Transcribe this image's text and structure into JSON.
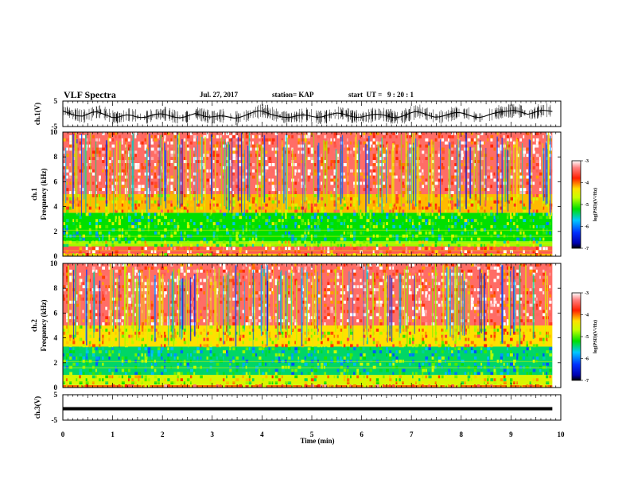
{
  "header": {
    "title": "VLF Spectra",
    "date": "Jul. 27, 2017",
    "station": "station= KAP",
    "start": "start  UT =   9 : 20 : 1"
  },
  "chart_data": [
    {
      "type": "line",
      "id": "ch1",
      "ylabel": "ch.1(V)",
      "ylim": [
        -5,
        5
      ],
      "yticks": [
        "5",
        "-5"
      ],
      "xlim": [
        0,
        10
      ],
      "series": [
        {
          "values": [
            1.1,
            0.4,
            -0.3,
            -0.8,
            -0.9,
            -0.2,
            0.6,
            0.8,
            0.1,
            -0.6,
            -1.4,
            -1.5,
            -0.9,
            -0.4,
            -0.6,
            -1.2,
            -1.5,
            -1.3,
            -0.7,
            -0.2,
            0.0,
            -0.3,
            -0.9,
            -1.4,
            -1.6,
            -1.2,
            -0.5,
            0.1,
            -0.4,
            -1.0,
            -1.3,
            -1.1,
            -0.8,
            -0.9,
            -1.3,
            -1.7,
            -1.5,
            -0.8,
            -0.1,
            0.7,
            1.2,
            0.9,
            0.1,
            -0.5,
            -0.9,
            -1.3,
            -1.5,
            -1.2,
            -0.7,
            -0.4,
            -0.6,
            -1.1,
            -1.4,
            -1.2,
            -0.6,
            -0.1,
            0.3,
            0.1,
            -0.5,
            -1.1,
            -1.4,
            -1.3,
            -0.8,
            -0.4,
            -0.2,
            -0.3,
            -0.7,
            -1.3,
            -1.6,
            -1.2,
            -0.5,
            0.3,
            0.9,
            0.6,
            -0.1,
            -0.8,
            -1.3,
            -1.2,
            -0.7,
            -0.1,
            0.4,
            0.5,
            0.1,
            -0.6,
            -1.2,
            -1.5,
            -1.1,
            -0.4,
            0.2,
            0.6,
            0.8,
            1.1,
            1.4,
            1.0,
            0.4,
            -0.2,
            0.3,
            1.0,
            1.4,
            1.2,
            0.9
          ]
        }
      ]
    },
    {
      "type": "heatmap",
      "id": "ch1spec",
      "ylabel": "ch.1\nFrequency  (kHz)",
      "ylim": [
        0,
        10
      ],
      "yticks": [
        "0",
        "2",
        "4",
        "6",
        "8",
        "10"
      ],
      "xlim": [
        0,
        10
      ],
      "colorbar": {
        "label": "log(PSD)(V²/Hz)",
        "ticks": [
          "-3",
          "-4",
          "-5",
          "-6",
          "-7"
        ],
        "range": [
          -7,
          -3
        ]
      },
      "bands_khz": [
        {
          "from": 0,
          "to": 0.2,
          "level": -4.2
        },
        {
          "from": 0.2,
          "to": 0.8,
          "level": -3.5
        },
        {
          "from": 0.8,
          "to": 1.2,
          "level": -4.8
        },
        {
          "from": 1.2,
          "to": 3.5,
          "level": -5.2
        },
        {
          "from": 3.5,
          "to": 5.0,
          "level": -4.2
        },
        {
          "from": 5.0,
          "to": 10,
          "level": -3.4
        }
      ]
    },
    {
      "type": "heatmap",
      "id": "ch2spec",
      "ylabel": "ch.2\nFrequency  (kHz)",
      "ylim": [
        0,
        10
      ],
      "yticks": [
        "0",
        "2",
        "4",
        "6",
        "8",
        "10"
      ],
      "xlim": [
        0,
        10
      ],
      "colorbar": {
        "label": "log(PSD)(V²/Hz)",
        "ticks": [
          "-3",
          "-4",
          "-5",
          "-6",
          "-7"
        ],
        "range": [
          -7,
          -3
        ]
      },
      "bands_khz": [
        {
          "from": 0,
          "to": 0.2,
          "level": -4.0
        },
        {
          "from": 0.2,
          "to": 1.0,
          "level": -4.6
        },
        {
          "from": 1.0,
          "to": 3.3,
          "level": -5.4
        },
        {
          "from": 3.3,
          "to": 5.0,
          "level": -4.3
        },
        {
          "from": 5.0,
          "to": 10,
          "level": -3.4
        }
      ]
    },
    {
      "type": "line",
      "id": "ch3",
      "ylabel": "ch.3(V)",
      "ylim": [
        -5,
        5
      ],
      "yticks": [
        "5",
        "-5"
      ],
      "xlim": [
        0,
        10
      ],
      "series": [
        {
          "values": [
            -0.5,
            -0.5
          ]
        }
      ]
    }
  ],
  "xaxis": {
    "label": "Time  (min)",
    "ticks": [
      "0",
      "1",
      "2",
      "3",
      "4",
      "5",
      "6",
      "7",
      "8",
      "9",
      "10"
    ],
    "data_end_min": 9.83
  }
}
